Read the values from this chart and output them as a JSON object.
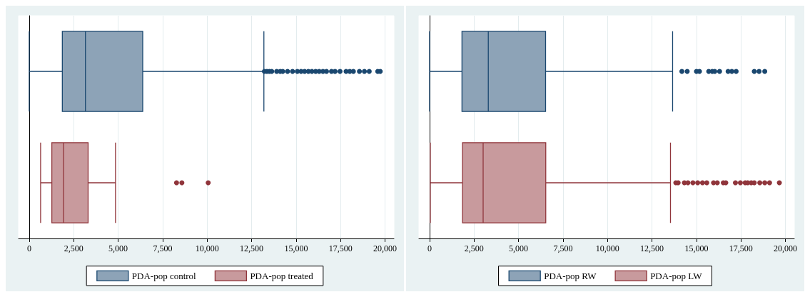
{
  "chart_data": [
    {
      "type": "box",
      "orientation": "horizontal",
      "categories": [
        null,
        null
      ],
      "xlim": [
        -600,
        20500
      ],
      "xticks": [
        0,
        {
          "value": 2500,
          "label": "2,500"
        },
        {
          "value": 5000,
          "label": "5,000"
        },
        {
          "value": 7500,
          "label": "7,500"
        },
        {
          "value": 10000,
          "label": "10,000"
        },
        {
          "value": 12500,
          "label": "12,500"
        },
        {
          "value": 15000,
          "label": "15,000"
        },
        {
          "value": 17500,
          "label": "17,500"
        },
        {
          "value": 20000,
          "label": "20,000"
        }
      ],
      "grid": "x",
      "legend": "bottom",
      "tick_labels": "x",
      "series": [
        {
          "name": "PDA-pop control",
          "color": "#1a476f",
          "boxes": [
            {
              "low": 0,
              "q1": 1860,
              "median": 3160,
              "q3": 6380,
              "high": 13190,
              "outliers": [
                13220,
                13360,
                13500,
                13630,
                13910,
                14110,
                14250,
                14520,
                14800,
                15070,
                15280,
                15480,
                15690,
                15890,
                16100,
                16300,
                16510,
                16710,
                16990,
                17190,
                17470,
                17810,
                18020,
                18220,
                18560,
                18840,
                19110,
                19590,
                19730
              ]
            },
            null
          ]
        },
        {
          "name": "PDA-pop treated",
          "color": "#90353b",
          "boxes": [
            null,
            {
              "low": 640,
              "q1": 1270,
              "median": 1930,
              "q3": 3310,
              "high": 4850,
              "outliers": [
                8280,
                8580,
                10060
              ]
            }
          ]
        }
      ]
    },
    {
      "type": "box",
      "orientation": "horizontal",
      "categories": [
        null,
        null
      ],
      "xlim": [
        -600,
        20500
      ],
      "xticks": [
        0,
        {
          "value": 2500,
          "label": "2,500"
        },
        {
          "value": 5000,
          "label": "5,000"
        },
        {
          "value": 7500,
          "label": "7,500"
        },
        {
          "value": 10000,
          "label": "10,000"
        },
        {
          "value": 12500,
          "label": "12,500"
        },
        {
          "value": 15000,
          "label": "15,000"
        },
        {
          "value": 17500,
          "label": "17,500"
        },
        {
          "value": 20000,
          "label": "20,000"
        }
      ],
      "grid": "x",
      "legend": "bottom",
      "tick_labels": "x",
      "series": [
        {
          "name": "PDA-pop RW",
          "color": "#1a476f",
          "boxes": [
            {
              "low": 0,
              "q1": 1820,
              "median": 3300,
              "q3": 6520,
              "high": 13660,
              "outliers": [
                14180,
                14480,
                15000,
                15170,
                15690,
                15890,
                16030,
                16300,
                16780,
                16990,
                17230,
                18250,
                18520,
                18840
              ]
            },
            null
          ]
        },
        {
          "name": "PDA-pop LW",
          "color": "#90353b",
          "boxes": [
            null,
            {
              "low": 40,
              "q1": 1850,
              "median": 3010,
              "q3": 6530,
              "high": 13540,
              "outliers": [
                13840,
                13970,
                14320,
                14520,
                14800,
                15070,
                15340,
                15580,
                15960,
                16170,
                16510,
                16650,
                17190,
                17470,
                17740,
                17880,
                18080,
                18250,
                18560,
                18840,
                19110,
                19660
              ]
            }
          ]
        }
      ]
    }
  ]
}
